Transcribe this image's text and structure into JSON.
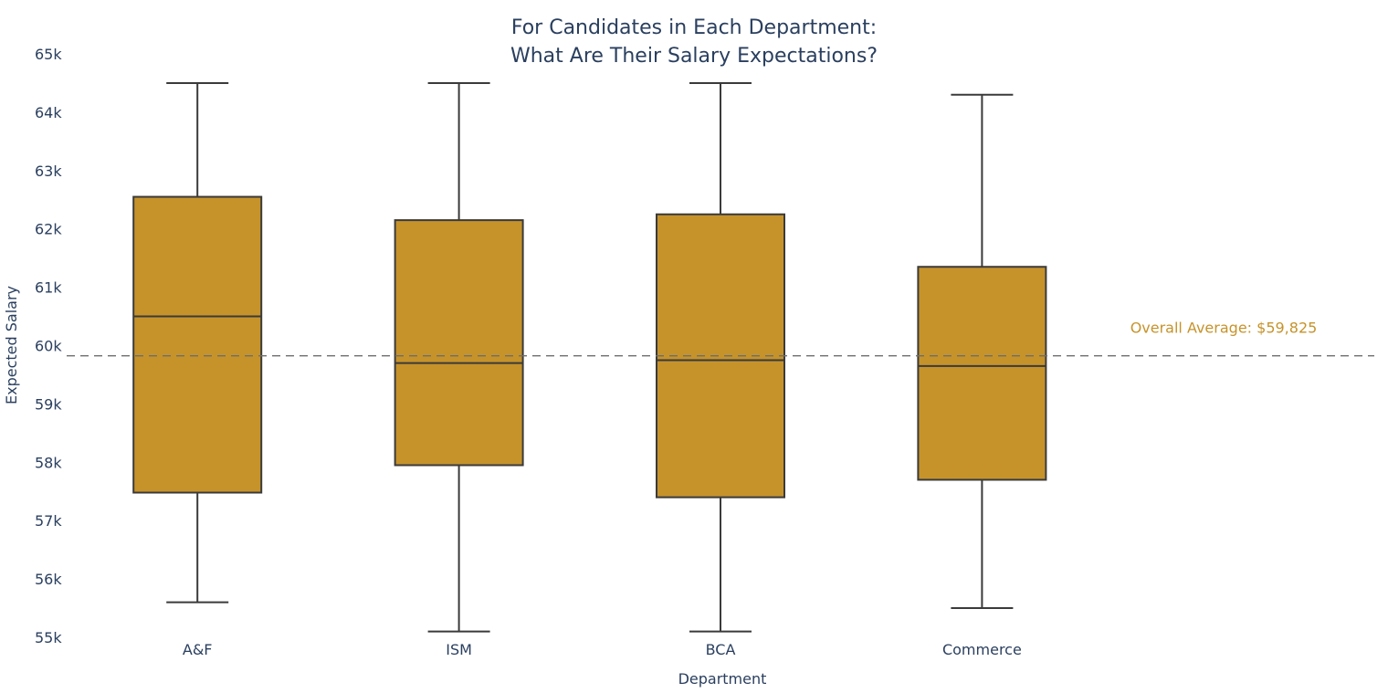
{
  "chart_data": {
    "type": "box",
    "title_lines": [
      "For Candidates in Each Department:",
      "What Are Their Salary Expectations?"
    ],
    "xlabel": "Department",
    "ylabel": "Expected Salary",
    "ylim": [
      55000,
      65000
    ],
    "y_ticks": [
      55000,
      56000,
      57000,
      58000,
      59000,
      60000,
      61000,
      62000,
      63000,
      64000,
      65000
    ],
    "y_tick_labels": [
      "55k",
      "56k",
      "57k",
      "58k",
      "59k",
      "60k",
      "61k",
      "62k",
      "63k",
      "64k",
      "65k"
    ],
    "categories": [
      "A&F",
      "ISM",
      "BCA",
      "Commerce"
    ],
    "boxes": [
      {
        "name": "A&F",
        "min": 55600,
        "q1": 57480,
        "median": 60500,
        "q3": 62550,
        "max": 64500
      },
      {
        "name": "ISM",
        "min": 55100,
        "q1": 57950,
        "median": 59700,
        "q3": 62150,
        "max": 64500
      },
      {
        "name": "BCA",
        "min": 55100,
        "q1": 57400,
        "median": 59750,
        "q3": 62250,
        "max": 64500
      },
      {
        "name": "Commerce",
        "min": 55500,
        "q1": 57700,
        "median": 59650,
        "q3": 61350,
        "max": 64300
      }
    ],
    "reference_line": {
      "value": 59825,
      "label": "Overall Average: $59,825",
      "style": "dashed"
    },
    "colors": {
      "box_fill": "#c6932b",
      "box_line": "#3a3a3a",
      "reference_line": "#6e6e6e",
      "annotation": "#c6932b",
      "text": "#2a3f5f"
    },
    "grid": false,
    "legend": "none"
  }
}
